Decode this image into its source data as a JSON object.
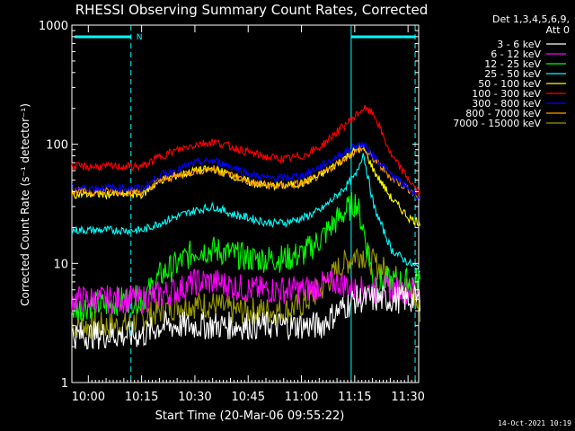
{
  "chart_data": {
    "type": "line",
    "title": "RHESSI Observing Summary Count Rates, Corrected",
    "xlabel": "Start Time (20-Mar-06 09:55:22)",
    "ylabel": "Corrected Count Rate (s⁻¹ detector⁻¹)",
    "yscale": "log",
    "ylim": [
      1,
      1000
    ],
    "xlim": [
      "09:55:22",
      "11:33:00"
    ],
    "x_ticks": [
      "10:00",
      "10:15",
      "10:30",
      "10:45",
      "11:00",
      "11:15",
      "11:30"
    ],
    "y_ticks": [
      "1",
      "10",
      "100",
      "1000"
    ],
    "grid": false,
    "legend_position": "right",
    "legend_header": [
      "Det 1,3,4,5,6,9,",
      "Att 0"
    ],
    "footer_date": "14-Oct-2021 10:19",
    "annotations": {
      "night_marker": "N",
      "vertical_markers": [
        "10:12",
        "11:14",
        "11:32"
      ]
    },
    "x_minutes": [
      0,
      5,
      10,
      15,
      20,
      25,
      30,
      35,
      40,
      45,
      50,
      55,
      60,
      65,
      70,
      75,
      80,
      82,
      85,
      90,
      95,
      98
    ],
    "series": [
      {
        "name": "3 - 6 keV",
        "color": "#ffffff",
        "values": [
          2.5,
          2.5,
          2.5,
          2.5,
          2.5,
          3.0,
          3.0,
          3.0,
          3.0,
          3.0,
          3.0,
          3.0,
          3.0,
          3.0,
          3.0,
          4.0,
          5.0,
          5.0,
          5.0,
          5.0,
          5.0,
          5.0
        ]
      },
      {
        "name": "6 - 12 keV",
        "color": "#ff00ff",
        "values": [
          5.0,
          5.0,
          5.0,
          5.0,
          5.0,
          5.5,
          6.0,
          7.0,
          7.0,
          6.5,
          6.0,
          6.0,
          6.0,
          6.0,
          6.5,
          7.0,
          6.0,
          6.0,
          6.0,
          6.0,
          6.0,
          6.0
        ]
      },
      {
        "name": "12 - 25 keV",
        "color": "#00ff00",
        "values": [
          4.0,
          4.5,
          4.5,
          5.0,
          5.0,
          8.0,
          10.0,
          13.0,
          13.0,
          12.0,
          11.0,
          11.0,
          11.0,
          12.0,
          16.0,
          24.0,
          33.0,
          20.0,
          7.0,
          7.0,
          7.0,
          7.0
        ]
      },
      {
        "name": "25 - 50 keV",
        "color": "#00ffff",
        "values": [
          19.0,
          19.0,
          19.0,
          19.0,
          19.0,
          22.0,
          25.0,
          28.0,
          30.0,
          26.0,
          24.0,
          22.0,
          22.0,
          24.0,
          28.0,
          38.0,
          55.0,
          85.0,
          30.0,
          13.0,
          10.0,
          9.0
        ]
      },
      {
        "name": "50 - 100 keV",
        "color": "#ffff00",
        "values": [
          38.0,
          38.0,
          38.0,
          38.0,
          38.0,
          50.0,
          55.0,
          60.0,
          62.0,
          55.0,
          48.0,
          45.0,
          45.0,
          47.0,
          55.0,
          70.0,
          90.0,
          95.0,
          60.0,
          35.0,
          24.0,
          22.0
        ]
      },
      {
        "name": "100 - 300 keV",
        "color": "#ff0000",
        "values": [
          65.0,
          65.0,
          65.0,
          65.0,
          65.0,
          80.0,
          90.0,
          100.0,
          105.0,
          95.0,
          85.0,
          78.0,
          75.0,
          80.0,
          95.0,
          130.0,
          175.0,
          200.0,
          180.0,
          80.0,
          50.0,
          38.0
        ]
      },
      {
        "name": "300 - 800 keV",
        "color": "#0000ff",
        "values": [
          43.0,
          43.0,
          43.0,
          43.0,
          43.0,
          55.0,
          62.0,
          70.0,
          73.0,
          65.0,
          56.0,
          52.0,
          52.0,
          55.0,
          65.0,
          80.0,
          98.0,
          100.0,
          80.0,
          55.0,
          42.0,
          35.0
        ]
      },
      {
        "name": "800 - 7000 keV",
        "color": "#ff9900",
        "values": [
          40.0,
          40.0,
          40.0,
          40.0,
          40.0,
          50.0,
          55.0,
          60.0,
          62.0,
          55.0,
          48.0,
          45.0,
          45.0,
          47.0,
          55.0,
          70.0,
          88.0,
          92.0,
          75.0,
          52.0,
          42.0,
          35.0
        ]
      },
      {
        "name": "7000 - 15000 keV",
        "color": "#999900",
        "values": [
          3.0,
          3.0,
          3.0,
          3.0,
          3.5,
          4.0,
          4.5,
          4.5,
          4.5,
          4.0,
          4.0,
          4.0,
          4.0,
          4.5,
          6.0,
          9.0,
          12.0,
          12.0,
          10.0,
          8.0,
          6.0,
          4.0
        ]
      }
    ]
  }
}
